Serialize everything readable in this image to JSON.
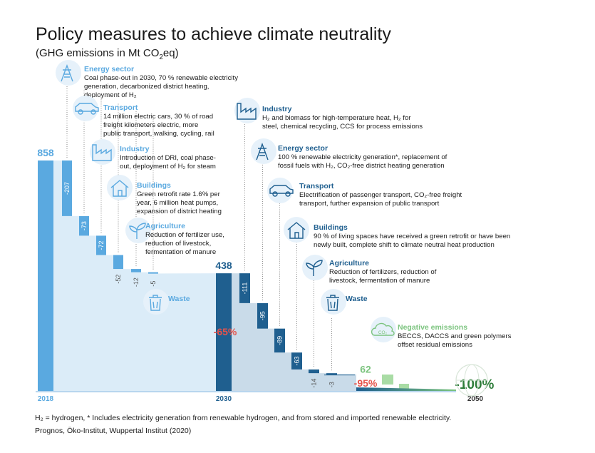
{
  "title": "Policy measures to achieve climate neutrality",
  "subtitle_pre": "(GHG emissions in Mt CO",
  "subtitle_sub": "2",
  "subtitle_post": "eq)",
  "colors": {
    "light_bar": "#5aa9e0",
    "dark_bar": "#1f5f8f",
    "light_fill": "#dbecf8",
    "dark_fill": "#c9dbe9",
    "green": "#7cc47f",
    "red": "#e5534b"
  },
  "chart_data": {
    "type": "waterfall",
    "x_labels": [
      "2018",
      "2030",
      "2050"
    ],
    "start_2018": {
      "value": 858,
      "label": "858"
    },
    "phase1": [
      {
        "sector": "Energy sector",
        "value": -207,
        "label": "-207"
      },
      {
        "sector": "Transport",
        "value": -73,
        "label": "-73"
      },
      {
        "sector": "Industry",
        "value": -72,
        "label": "-72"
      },
      {
        "sector": "Buildings",
        "value": -52,
        "label": "-52"
      },
      {
        "sector": "Agriculture",
        "value": -12,
        "label": "-12"
      },
      {
        "sector": "Waste",
        "value": -5,
        "label": "-5"
      }
    ],
    "total_2030": {
      "value": 438,
      "label": "438",
      "change_label": "-65%"
    },
    "phase2": [
      {
        "sector": "Industry",
        "value": -111,
        "label": "-111"
      },
      {
        "sector": "Energy sector",
        "value": -95,
        "label": "-95"
      },
      {
        "sector": "Transport",
        "value": -89,
        "label": "-89"
      },
      {
        "sector": "Buildings",
        "value": -63,
        "label": "-63"
      },
      {
        "sector": "Agriculture",
        "value": -14,
        "label": "-14"
      },
      {
        "sector": "Waste",
        "value": -3,
        "label": "-3"
      }
    ],
    "residual": {
      "value": 62,
      "label": "62",
      "change_label": "-95%"
    },
    "end_2050": {
      "label": "-100%"
    }
  },
  "annotations_2030": [
    {
      "icon": "power-pylon-icon",
      "heading": "Energy sector",
      "lines": [
        "Coal phase-out in 2030, 70 % renewable electricity",
        "generation, decarbonized district heating,",
        "deployment of H₂"
      ]
    },
    {
      "icon": "car-icon",
      "heading": "Transport",
      "lines": [
        "14 million electric cars, 30 % of road",
        "freight kilometers electric, more",
        "public transport, walking, cycling, rail"
      ]
    },
    {
      "icon": "factory-icon",
      "heading": "Industry",
      "lines": [
        "Introduction of DRI, coal phase-",
        "out, deployment of H₂ for steam"
      ]
    },
    {
      "icon": "house-icon",
      "heading": "Buildings",
      "lines": [
        "Green retrofit rate 1.6% per",
        "year, 6 million heat pumps,",
        "expansion of district heating"
      ]
    },
    {
      "icon": "plant-icon",
      "heading": "Agriculture",
      "lines": [
        "Reduction of fertilizer use,",
        "reduction of livestock,",
        "fermentation of manure"
      ]
    },
    {
      "icon": "waste-bin-icon",
      "heading": "Waste",
      "lines": []
    }
  ],
  "annotations_2050": [
    {
      "icon": "factory-icon",
      "heading": "Industry",
      "lines": [
        "H₂ and biomass for high-temperature heat, H₂ for",
        "steel, chemical recycling, CCS for process emissions"
      ]
    },
    {
      "icon": "power-pylon-icon",
      "heading": "Energy sector",
      "lines": [
        "100 % renewable electricity generation*, replacement of",
        "fossil fuels with H₂, CO₂-free district heating generation"
      ]
    },
    {
      "icon": "car-icon",
      "heading": "Transport",
      "lines": [
        "Electrification of passenger transport, CO₂-free freight",
        "transport, further expansion of public transport"
      ]
    },
    {
      "icon": "house-icon",
      "heading": "Buildings",
      "lines": [
        "90 % of living spaces have received a green retrofit or have been",
        "newly built, complete shift to climate neutral heat production"
      ]
    },
    {
      "icon": "plant-icon",
      "heading": "Agriculture",
      "lines": [
        "Reduction of fertilizers, reduction of",
        "livestock, fermentation of manure"
      ]
    },
    {
      "icon": "waste-bin-icon",
      "heading": "Waste",
      "lines": []
    }
  ],
  "negative_emissions": {
    "icon": "co2-cloud-icon",
    "heading": "Negative emissions",
    "lines": [
      "BECCS, DACCS and green polymers",
      "offset residual emissions"
    ]
  },
  "globe_icon": "globe-hands-icon",
  "footer": {
    "line1": "H₂ = hydrogen, * Includes electricity generation from renewable hydrogen, and from stored and imported renewable electricity.",
    "line2": "Prognos, Öko-Institut, Wuppertal Institut (2020)"
  }
}
